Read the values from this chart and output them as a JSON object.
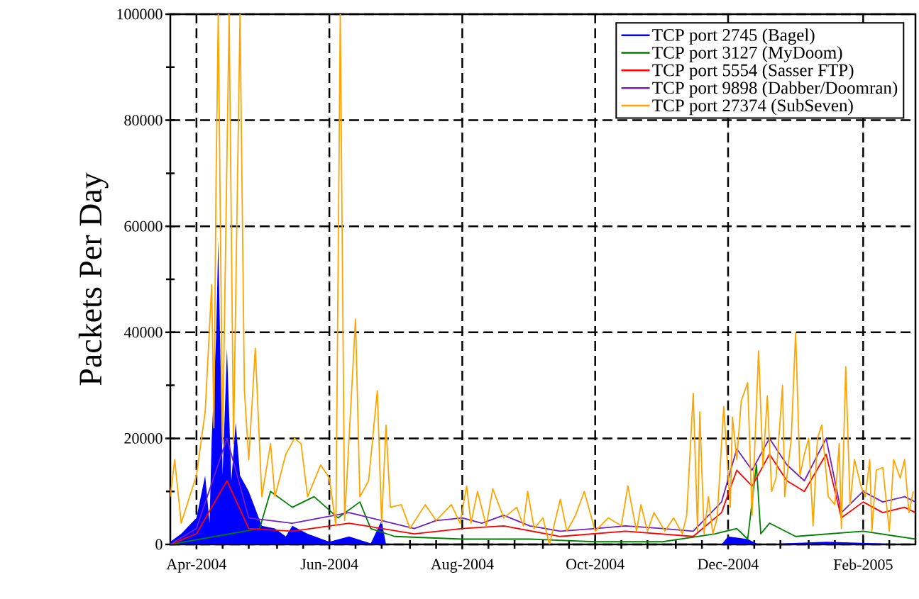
{
  "chart_data": {
    "type": "line",
    "ylabel": "Packets Per Day",
    "xlim": [
      "2004-03-20",
      "2005-02-25"
    ],
    "ylim": [
      0,
      100000
    ],
    "xticks": [
      {
        "value": "2004-04-01",
        "label": "Apr-2004"
      },
      {
        "value": "2004-06-01",
        "label": "Jun-2004"
      },
      {
        "value": "2004-08-01",
        "label": "Aug-2004"
      },
      {
        "value": "2004-10-01",
        "label": "Oct-2004"
      },
      {
        "value": "2004-12-01",
        "label": "Dec-2004"
      },
      {
        "value": "2005-02-01",
        "label": "Feb-2005"
      },
      {
        "value": "2004-04-13",
        "label": null
      },
      {
        "value": "2004-04-25",
        "label": null
      },
      {
        "value": "2004-05-08",
        "label": null
      },
      {
        "value": "2004-05-20",
        "label": null
      },
      {
        "value": "2004-06-13",
        "label": null
      },
      {
        "value": "2004-06-25",
        "label": null
      },
      {
        "value": "2004-07-08",
        "label": null
      },
      {
        "value": "2004-07-20",
        "label": null
      },
      {
        "value": "2004-08-13",
        "label": null
      },
      {
        "value": "2004-08-25",
        "label": null
      },
      {
        "value": "2004-09-07",
        "label": null
      },
      {
        "value": "2004-09-19",
        "label": null
      },
      {
        "value": "2004-10-13",
        "label": null
      },
      {
        "value": "2004-10-25",
        "label": null
      },
      {
        "value": "2004-11-07",
        "label": null
      },
      {
        "value": "2004-11-19",
        "label": null
      },
      {
        "value": "2004-12-13",
        "label": null
      },
      {
        "value": "2004-12-25",
        "label": null
      },
      {
        "value": "2005-01-07",
        "label": null
      },
      {
        "value": "2005-01-19",
        "label": null
      },
      {
        "value": "2005-02-13",
        "label": null
      }
    ],
    "yticks": [
      0,
      20000,
      40000,
      60000,
      80000,
      100000,
      {
        "value": 10000,
        "label": null
      },
      {
        "value": 30000,
        "label": null
      },
      {
        "value": 50000,
        "label": null
      },
      {
        "value": 70000,
        "label": null
      },
      {
        "value": 90000,
        "label": null
      }
    ],
    "grid": true,
    "legend": "top right",
    "series": [
      {
        "name": "TCP port 2745 (Bagel)",
        "type": "area",
        "color": "#0000ff",
        "x": [
          "2004-03-20",
          "2004-03-25",
          "2004-04-01",
          "2004-04-05",
          "2004-04-07",
          "2004-04-08",
          "2004-04-10",
          "2004-04-11",
          "2004-04-13",
          "2004-04-15",
          "2004-04-17",
          "2004-04-19",
          "2004-04-21",
          "2004-04-25",
          "2004-05-01",
          "2004-05-07",
          "2004-05-12",
          "2004-05-15",
          "2004-05-22",
          "2004-06-01",
          "2004-06-10",
          "2004-06-20",
          "2004-06-25",
          "2004-06-27",
          "2004-11-28",
          "2004-12-01",
          "2004-12-10",
          "2004-12-15",
          "2005-01-15",
          "2005-02-25"
        ],
        "values": [
          500,
          2000,
          5000,
          13000,
          4000,
          20000,
          39000,
          57500,
          13000,
          37000,
          12000,
          23000,
          13000,
          10000,
          3500,
          3000,
          1500,
          3500,
          2000,
          500,
          1500,
          200,
          4500,
          0,
          0,
          1500,
          1000,
          0,
          500,
          0
        ]
      },
      {
        "name": "TCP port 3127 (MyDoom)",
        "color": "#008000",
        "x": [
          "2004-03-20",
          "2004-04-30",
          "2004-05-05",
          "2004-05-15",
          "2004-05-25",
          "2004-06-05",
          "2004-06-15",
          "2004-06-20",
          "2004-07-01",
          "2004-08-01",
          "2004-09-01",
          "2004-10-01",
          "2004-11-01",
          "2004-11-25",
          "2004-12-05",
          "2004-12-10",
          "2004-12-14",
          "2004-12-16",
          "2004-12-20",
          "2005-01-01",
          "2005-02-01",
          "2005-02-25"
        ],
        "values": [
          0,
          3000,
          10000,
          7000,
          9000,
          5000,
          8000,
          3000,
          1500,
          1000,
          1000,
          500,
          500,
          2000,
          3000,
          1000,
          15000,
          2000,
          4000,
          1500,
          2500,
          1000
        ]
      },
      {
        "name": "TCP port 5554 (Sasser FTP)",
        "color": "#ff0000",
        "x": [
          "2004-03-20",
          "2004-04-01",
          "2004-04-15",
          "2004-04-25",
          "2004-05-15",
          "2004-06-10",
          "2004-07-10",
          "2004-08-01",
          "2004-08-20",
          "2004-09-15",
          "2004-10-15",
          "2004-11-15",
          "2004-11-28",
          "2004-12-05",
          "2004-12-12",
          "2004-12-20",
          "2004-12-28",
          "2005-01-05",
          "2005-01-15",
          "2005-01-22",
          "2005-02-01",
          "2005-02-10",
          "2005-02-20",
          "2005-02-25"
        ],
        "values": [
          0,
          2000,
          12000,
          3000,
          2500,
          4000,
          2000,
          3000,
          3500,
          1500,
          2500,
          1500,
          6000,
          14000,
          11000,
          17000,
          12000,
          10000,
          17000,
          5000,
          8000,
          6000,
          7000,
          6000
        ]
      },
      {
        "name": "TCP port 9898 (Dabber/Doomran)",
        "color": "#7020c0",
        "x": [
          "2004-03-20",
          "2004-04-01",
          "2004-04-15",
          "2004-04-25",
          "2004-05-15",
          "2004-06-10",
          "2004-06-20",
          "2004-07-10",
          "2004-07-20",
          "2004-08-01",
          "2004-08-10",
          "2004-08-20",
          "2004-09-01",
          "2004-09-15",
          "2004-10-01",
          "2004-10-15",
          "2004-11-01",
          "2004-11-15",
          "2004-11-28",
          "2004-12-05",
          "2004-12-12",
          "2004-12-20",
          "2004-12-28",
          "2005-01-05",
          "2005-01-15",
          "2005-01-22",
          "2005-02-01",
          "2005-02-10",
          "2005-02-20",
          "2005-02-25"
        ],
        "values": [
          0,
          3000,
          20000,
          5000,
          4000,
          6000,
          5000,
          3000,
          4500,
          5000,
          4000,
          5500,
          3500,
          2500,
          3000,
          3500,
          3000,
          2500,
          8000,
          18000,
          14000,
          20000,
          15000,
          12000,
          20000,
          6000,
          10000,
          8000,
          9000,
          8000
        ]
      },
      {
        "name": "TCP port 27374 (SubSeven)",
        "color": "#ffa500",
        "x": [
          "2004-03-20",
          "2004-03-22",
          "2004-03-25",
          "2004-03-30",
          "2004-04-01",
          "2004-04-05",
          "2004-04-07",
          "2004-04-08",
          "2004-04-09",
          "2004-04-10",
          "2004-04-11",
          "2004-04-13",
          "2004-04-16",
          "2004-04-18",
          "2004-04-21",
          "2004-04-23",
          "2004-04-25",
          "2004-04-28",
          "2004-05-01",
          "2004-05-05",
          "2004-05-07",
          "2004-05-12",
          "2004-05-16",
          "2004-05-19",
          "2004-05-22",
          "2004-05-28",
          "2004-06-01",
          "2004-06-04",
          "2004-06-06",
          "2004-06-08",
          "2004-06-13",
          "2004-06-15",
          "2004-06-19",
          "2004-06-23",
          "2004-06-25",
          "2004-06-27",
          "2004-06-29",
          "2004-07-04",
          "2004-07-08",
          "2004-07-15",
          "2004-07-20",
          "2004-07-27",
          "2004-07-31",
          "2004-08-03",
          "2004-08-05",
          "2004-08-08",
          "2004-08-12",
          "2004-08-15",
          "2004-08-20",
          "2004-08-26",
          "2004-08-29",
          "2004-08-31",
          "2004-09-03",
          "2004-09-07",
          "2004-09-10",
          "2004-09-15",
          "2004-09-18",
          "2004-09-22",
          "2004-09-26",
          "2004-10-01",
          "2004-10-07",
          "2004-10-13",
          "2004-10-16",
          "2004-10-20",
          "2004-10-22",
          "2004-10-25",
          "2004-10-28",
          "2004-11-02",
          "2004-11-06",
          "2004-11-10",
          "2004-11-12",
          "2004-11-15",
          "2004-11-17",
          "2004-11-18",
          "2004-11-20",
          "2004-11-22",
          "2004-11-24",
          "2004-11-26",
          "2004-11-29",
          "2004-12-02",
          "2004-12-03",
          "2004-12-05",
          "2004-12-07",
          "2004-12-10",
          "2004-12-12",
          "2004-12-15",
          "2004-12-17",
          "2004-12-19",
          "2004-12-21",
          "2004-12-23",
          "2004-12-26",
          "2004-12-27",
          "2004-12-30",
          "2005-01-01",
          "2005-01-03",
          "2005-01-05",
          "2005-01-07",
          "2005-01-09",
          "2005-01-11",
          "2005-01-13",
          "2005-01-16",
          "2005-01-19",
          "2005-01-21",
          "2005-01-22",
          "2005-01-24",
          "2005-01-26",
          "2005-01-28",
          "2005-01-31",
          "2005-02-02",
          "2005-02-04",
          "2005-02-05",
          "2005-02-07",
          "2005-02-10",
          "2005-02-13",
          "2005-02-15",
          "2005-02-18",
          "2005-02-20",
          "2005-02-22",
          "2005-02-24"
        ],
        "values": [
          9000,
          16000,
          4000,
          10500,
          13000,
          25000,
          41000,
          49000,
          22000,
          68500,
          100000,
          19000,
          100000,
          19000,
          100000,
          29000,
          16000,
          37000,
          9000,
          19000,
          9000,
          17000,
          20000,
          19000,
          9000,
          15000,
          12500,
          3500,
          100000,
          4500,
          42500,
          9000,
          12000,
          29000,
          4000,
          22500,
          7000,
          7500,
          3000,
          7500,
          4500,
          7500,
          4000,
          11000,
          4000,
          10000,
          3500,
          10500,
          5000,
          7000,
          3500,
          10000,
          3000,
          5000,
          0,
          8500,
          2500,
          5500,
          10000,
          2500,
          5000,
          3500,
          11000,
          2500,
          7500,
          2500,
          6000,
          2500,
          5000,
          2000,
          5500,
          28500,
          2500,
          25000,
          2000,
          9000,
          2000,
          5000,
          26000,
          7000,
          24000,
          16000,
          27000,
          30500,
          5500,
          36500,
          14500,
          28000,
          10000,
          12500,
          30000,
          9000,
          20000,
          40000,
          13000,
          17000,
          20000,
          3500,
          20000,
          22500,
          9000,
          7500,
          19000,
          3000,
          33500,
          7500,
          16000,
          11000,
          9000,
          16000,
          2500,
          14000,
          14500,
          2500,
          16000,
          12500,
          16000,
          6000,
          10000
        ]
      }
    ]
  }
}
